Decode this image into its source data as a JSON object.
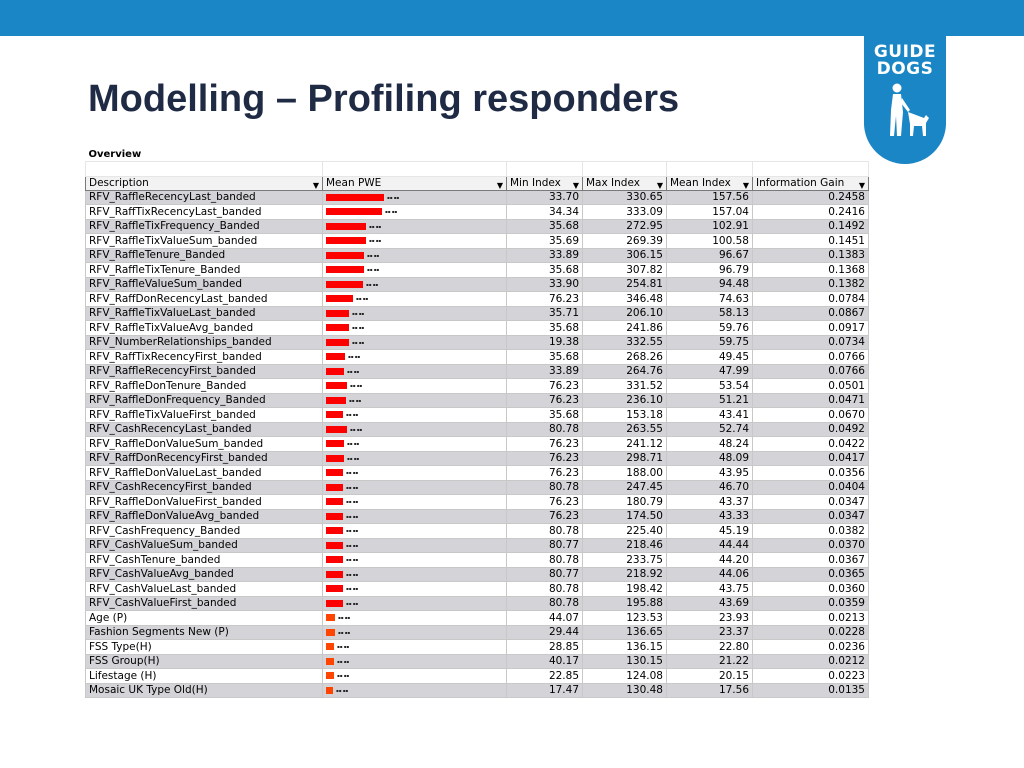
{
  "title": "Modelling – Profiling responders",
  "logo": {
    "line1": "GUIDE",
    "line2": "DOGS"
  },
  "overview_label": "Overview",
  "colors": {
    "topbar": "#1a86c5",
    "bar_red": "#ff0000",
    "bar_orange": "#ff4500",
    "title": "#1f2a44"
  },
  "headers": [
    "Description",
    "Mean PWE",
    "Min Index",
    "Max Index",
    "Mean Index",
    "Information Gain"
  ],
  "rows": [
    {
      "desc": "RFV_RaffleRecencyLast_banded",
      "pwe": 0.76,
      "min": "33.70",
      "max": "330.65",
      "mean": "157.56",
      "gain": "0.2458"
    },
    {
      "desc": "RFV_RaffTixRecencyLast_banded",
      "pwe": 0.74,
      "min": "34.34",
      "max": "333.09",
      "mean": "157.04",
      "gain": "0.2416"
    },
    {
      "desc": "RFV_RaffleTixFrequency_Banded",
      "pwe": 0.52,
      "min": "35.68",
      "max": "272.95",
      "mean": "102.91",
      "gain": "0.1492"
    },
    {
      "desc": "RFV_RaffleTixValueSum_banded",
      "pwe": 0.52,
      "min": "35.69",
      "max": "269.39",
      "mean": "100.58",
      "gain": "0.1451"
    },
    {
      "desc": "RFV_RaffleTenure_Banded",
      "pwe": 0.5,
      "min": "33.89",
      "max": "306.15",
      "mean": "96.67",
      "gain": "0.1383"
    },
    {
      "desc": "RFV_RaffleTixTenure_Banded",
      "pwe": 0.5,
      "min": "35.68",
      "max": "307.82",
      "mean": "96.79",
      "gain": "0.1368"
    },
    {
      "desc": "RFV_RaffleValueSum_banded",
      "pwe": 0.49,
      "min": "33.90",
      "max": "254.81",
      "mean": "94.48",
      "gain": "0.1382"
    },
    {
      "desc": "RFV_RaffDonRecencyLast_banded",
      "pwe": 0.36,
      "min": "76.23",
      "max": "346.48",
      "mean": "74.63",
      "gain": "0.0784"
    },
    {
      "desc": "RFV_RaffleTixValueLast_banded",
      "pwe": 0.3,
      "min": "35.71",
      "max": "206.10",
      "mean": "58.13",
      "gain": "0.0867"
    },
    {
      "desc": "RFV_RaffleTixValueAvg_banded",
      "pwe": 0.3,
      "min": "35.68",
      "max": "241.86",
      "mean": "59.76",
      "gain": "0.0917"
    },
    {
      "desc": "RFV_NumberRelationships_banded",
      "pwe": 0.3,
      "min": "19.38",
      "max": "332.55",
      "mean": "59.75",
      "gain": "0.0734"
    },
    {
      "desc": "RFV_RaffTixRecencyFirst_banded",
      "pwe": 0.25,
      "min": "35.68",
      "max": "268.26",
      "mean": "49.45",
      "gain": "0.0766"
    },
    {
      "desc": "RFV_RaffleRecencyFirst_banded",
      "pwe": 0.24,
      "min": "33.89",
      "max": "264.76",
      "mean": "47.99",
      "gain": "0.0766"
    },
    {
      "desc": "RFV_RaffleDonTenure_Banded",
      "pwe": 0.27,
      "min": "76.23",
      "max": "331.52",
      "mean": "53.54",
      "gain": "0.0501"
    },
    {
      "desc": "RFV_RaffleDonFrequency_Banded",
      "pwe": 0.26,
      "min": "76.23",
      "max": "236.10",
      "mean": "51.21",
      "gain": "0.0471"
    },
    {
      "desc": "RFV_RaffleTixValueFirst_banded",
      "pwe": 0.22,
      "min": "35.68",
      "max": "153.18",
      "mean": "43.41",
      "gain": "0.0670"
    },
    {
      "desc": "RFV_CashRecencyLast_banded",
      "pwe": 0.27,
      "min": "80.78",
      "max": "263.55",
      "mean": "52.74",
      "gain": "0.0492"
    },
    {
      "desc": "RFV_RaffleDonValueSum_banded",
      "pwe": 0.24,
      "min": "76.23",
      "max": "241.12",
      "mean": "48.24",
      "gain": "0.0422"
    },
    {
      "desc": "RFV_RaffDonRecencyFirst_banded",
      "pwe": 0.24,
      "min": "76.23",
      "max": "298.71",
      "mean": "48.09",
      "gain": "0.0417"
    },
    {
      "desc": "RFV_RaffleDonValueLast_banded",
      "pwe": 0.22,
      "min": "76.23",
      "max": "188.00",
      "mean": "43.95",
      "gain": "0.0356"
    },
    {
      "desc": "RFV_CashRecencyFirst_banded",
      "pwe": 0.23,
      "min": "80.78",
      "max": "247.45",
      "mean": "46.70",
      "gain": "0.0404"
    },
    {
      "desc": "RFV_RaffleDonValueFirst_banded",
      "pwe": 0.22,
      "min": "76.23",
      "max": "180.79",
      "mean": "43.37",
      "gain": "0.0347"
    },
    {
      "desc": "RFV_RaffleDonValueAvg_banded",
      "pwe": 0.22,
      "min": "76.23",
      "max": "174.50",
      "mean": "43.33",
      "gain": "0.0347"
    },
    {
      "desc": "RFV_CashFrequency_Banded",
      "pwe": 0.23,
      "min": "80.78",
      "max": "225.40",
      "mean": "45.19",
      "gain": "0.0382"
    },
    {
      "desc": "RFV_CashValueSum_banded",
      "pwe": 0.22,
      "min": "80.77",
      "max": "218.46",
      "mean": "44.44",
      "gain": "0.0370"
    },
    {
      "desc": "RFV_CashTenure_banded",
      "pwe": 0.22,
      "min": "80.78",
      "max": "233.75",
      "mean": "44.20",
      "gain": "0.0367"
    },
    {
      "desc": "RFV_CashValueAvg_banded",
      "pwe": 0.22,
      "min": "80.77",
      "max": "218.92",
      "mean": "44.06",
      "gain": "0.0365"
    },
    {
      "desc": "RFV_CashValueLast_banded",
      "pwe": 0.22,
      "min": "80.78",
      "max": "198.42",
      "mean": "43.75",
      "gain": "0.0360"
    },
    {
      "desc": "RFV_CashValueFirst_banded",
      "pwe": 0.22,
      "min": "80.78",
      "max": "195.88",
      "mean": "43.69",
      "gain": "0.0359"
    },
    {
      "desc": "Age (P)",
      "pwe": 0.12,
      "min": "44.07",
      "max": "123.53",
      "mean": "23.93",
      "gain": "0.0213",
      "orange": true
    },
    {
      "desc": "Fashion Segments New (P)",
      "pwe": 0.12,
      "min": "29.44",
      "max": "136.65",
      "mean": "23.37",
      "gain": "0.0228",
      "orange": true
    },
    {
      "desc": "FSS Type(H)",
      "pwe": 0.11,
      "min": "28.85",
      "max": "136.15",
      "mean": "22.80",
      "gain": "0.0236",
      "orange": true
    },
    {
      "desc": "FSS Group(H)",
      "pwe": 0.11,
      "min": "40.17",
      "max": "130.15",
      "mean": "21.22",
      "gain": "0.0212",
      "orange": true
    },
    {
      "desc": "Lifestage (H)",
      "pwe": 0.1,
      "min": "22.85",
      "max": "124.08",
      "mean": "20.15",
      "gain": "0.0223",
      "orange": true
    },
    {
      "desc": "Mosaic UK Type Old(H)",
      "pwe": 0.09,
      "min": "17.47",
      "max": "130.48",
      "mean": "17.56",
      "gain": "0.0135",
      "orange": true
    }
  ]
}
